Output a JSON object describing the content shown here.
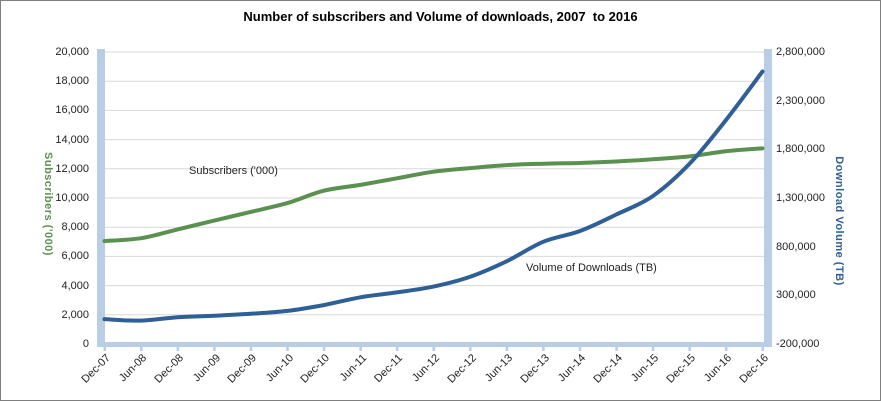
{
  "title": "Number of subscribers and Volume of downloads, 2007  to 2016",
  "annotations": [
    {
      "text": "Subscribers ('000)"
    },
    {
      "text": "Volume of Downloads (TB)"
    }
  ],
  "colors": {
    "subscribers_line": "#5B9150",
    "downloads_line": "#2E5F96",
    "axis_band": "#B9CDE5",
    "gridline": "#D9D9D9",
    "tick_text": "#1f1f1f",
    "title_text": "#000000",
    "figure_border": "#7F7F7F"
  },
  "chart_data": {
    "type": "line",
    "title": "Number of subscribers and Volume of downloads, 2007  to 2016",
    "categories": [
      "Dec-07",
      "Jun-08",
      "Dec-08",
      "Jun-09",
      "Dec-09",
      "Jun-10",
      "Dec-10",
      "Jun-11",
      "Dec-11",
      "Jun-12",
      "Dec-12",
      "Jun-13",
      "Dec-13",
      "Jun-14",
      "Dec-14",
      "Jun-15",
      "Dec-15",
      "Jun-16",
      "Dec-16"
    ],
    "series": [
      {
        "name": "Subscribers ('000)",
        "yaxis": "left",
        "color": "#5B9150",
        "values": [
          7050,
          7250,
          7850,
          8450,
          9050,
          9650,
          10500,
          10900,
          11350,
          11800,
          12050,
          12250,
          12350,
          12400,
          12500,
          12650,
          12850,
          13200,
          13400
        ]
      },
      {
        "name": "Volume of Downloads (TB)",
        "yaxis": "right",
        "color": "#2E5F96",
        "values": [
          55000,
          40000,
          75000,
          90000,
          110000,
          140000,
          200000,
          280000,
          330000,
          390000,
          490000,
          650000,
          850000,
          960000,
          1130000,
          1320000,
          1650000,
          2100000,
          2600000
        ]
      }
    ],
    "left_axis": {
      "title": "Subscribers ('000)",
      "range": [
        0,
        20000
      ],
      "tick_step": 2000,
      "tick_labels": [
        "20,000",
        "18,000",
        "16,000",
        "14,000",
        "12,000",
        "10,000",
        "8,000",
        "6,000",
        "4,000",
        "2,000",
        "0"
      ]
    },
    "right_axis": {
      "title": "Download Volume (TB)",
      "range": [
        -200000,
        2800000
      ],
      "tick_step": 500000,
      "tick_labels": [
        "2,800,000",
        "2,300,000",
        "1,800,000",
        "1,300,000",
        "800,000",
        "300,000",
        "-200,000"
      ]
    },
    "grid": true,
    "legend_position": "none",
    "smoothed_lines": true
  }
}
